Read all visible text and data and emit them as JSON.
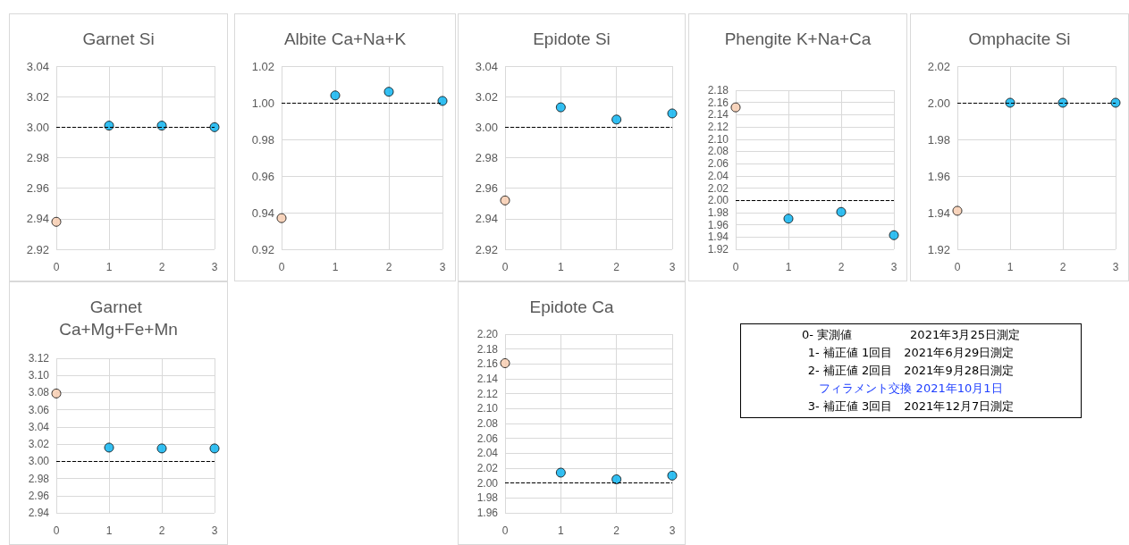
{
  "chart_data": [
    {
      "type": "scatter",
      "title": "Garnet Si",
      "x": [
        0,
        1,
        2,
        3
      ],
      "values": [
        2.938,
        3.001,
        3.001,
        3.0
      ],
      "colors": [
        "#f8cbad",
        "#00b0f0",
        "#00b0f0",
        "#00b0f0"
      ],
      "xlim": [
        0,
        3
      ],
      "xticks": [
        0,
        1,
        2,
        3
      ],
      "ylim": [
        2.92,
        3.04
      ],
      "yticks": [
        2.92,
        2.94,
        2.96,
        2.98,
        {
          "value": 3.0,
          "label": "3.00"
        },
        3.02,
        3.04
      ],
      "ref_lines": [
        {
          "axis": "y",
          "value": 3.0,
          "color": "#000000",
          "line_style": "dashed"
        }
      ],
      "grid": true,
      "marker": "circle"
    },
    {
      "type": "scatter",
      "title": "Albite Ca+Na+K",
      "x": [
        0,
        1,
        2,
        3
      ],
      "values": [
        0.937,
        1.004,
        1.006,
        1.001
      ],
      "colors": [
        "#f8cbad",
        "#00b0f0",
        "#00b0f0",
        "#00b0f0"
      ],
      "xlim": [
        0,
        3
      ],
      "xticks": [
        0,
        1,
        2,
        3
      ],
      "ylim": [
        0.92,
        1.02
      ],
      "yticks": [
        0.92,
        0.94,
        0.96,
        0.98,
        {
          "value": 1.0,
          "label": "1.00"
        },
        1.02
      ],
      "ref_lines": [
        {
          "axis": "y",
          "value": 1.0,
          "color": "#000000",
          "line_style": "dashed"
        }
      ],
      "grid": true,
      "marker": "circle"
    },
    {
      "type": "scatter",
      "title": "Epidote Si",
      "x": [
        0,
        1,
        2,
        3
      ],
      "values": [
        2.952,
        3.013,
        3.005,
        3.009
      ],
      "colors": [
        "#f8cbad",
        "#00b0f0",
        "#00b0f0",
        "#00b0f0"
      ],
      "xlim": [
        0,
        3
      ],
      "xticks": [
        0,
        1,
        2,
        3
      ],
      "ylim": [
        2.92,
        3.04
      ],
      "yticks": [
        2.92,
        2.94,
        2.96,
        2.98,
        {
          "value": 3.0,
          "label": "3.00"
        },
        3.02,
        3.04
      ],
      "ref_lines": [
        {
          "axis": "y",
          "value": 3.0,
          "color": "#000000",
          "line_style": "dashed"
        }
      ],
      "grid": true,
      "marker": "circle"
    },
    {
      "type": "scatter",
      "title": "Phengite K+Na+Ca",
      "x": [
        0,
        1,
        2,
        3
      ],
      "values": [
        2.152,
        1.97,
        1.981,
        1.943
      ],
      "colors": [
        "#f8cbad",
        "#00b0f0",
        "#00b0f0",
        "#00b0f0"
      ],
      "xlim": [
        0,
        3
      ],
      "xticks": [
        0,
        1,
        2,
        3
      ],
      "ylim": [
        1.92,
        2.18
      ],
      "yticks": [
        1.92,
        1.94,
        1.96,
        1.98,
        {
          "value": 2.0,
          "label": "2.00"
        },
        2.02,
        2.04,
        2.06,
        2.08,
        {
          "value": 2.1,
          "label": "2.10"
        },
        2.12,
        2.14,
        2.16,
        2.18
      ],
      "ref_lines": [
        {
          "axis": "y",
          "value": 2.0,
          "color": "#000000",
          "line_style": "dashed"
        }
      ],
      "grid": true,
      "marker": "circle"
    },
    {
      "type": "scatter",
      "title": "Omphacite Si",
      "x": [
        0,
        1,
        2,
        3
      ],
      "values": [
        1.941,
        2.0,
        2.0,
        2.0
      ],
      "colors": [
        "#f8cbad",
        "#00b0f0",
        "#00b0f0",
        "#00b0f0"
      ],
      "xlim": [
        0,
        3
      ],
      "xticks": [
        0,
        1,
        2,
        3
      ],
      "ylim": [
        1.92,
        2.02
      ],
      "yticks": [
        1.92,
        1.94,
        1.96,
        1.98,
        {
          "value": 2.0,
          "label": "2.00"
        },
        2.02
      ],
      "ref_lines": [
        {
          "axis": "y",
          "value": 2.0,
          "color": "#000000",
          "line_style": "dashed"
        }
      ],
      "grid": true,
      "marker": "circle"
    },
    {
      "type": "scatter",
      "title": "Garnet Ca+Mg+Fe+Mn",
      "x": [
        0,
        1,
        2,
        3
      ],
      "values": [
        3.079,
        3.016,
        3.015,
        3.015
      ],
      "colors": [
        "#f8cbad",
        "#00b0f0",
        "#00b0f0",
        "#00b0f0"
      ],
      "xlim": [
        0,
        3
      ],
      "xticks": [
        0,
        1,
        2,
        3
      ],
      "ylim": [
        2.94,
        3.12
      ],
      "yticks": [
        2.94,
        2.96,
        2.98,
        {
          "value": 3.0,
          "label": "3.00"
        },
        3.02,
        3.04,
        3.06,
        3.08,
        {
          "value": 3.1,
          "label": "3.10"
        },
        3.12
      ],
      "ref_lines": [
        {
          "axis": "y",
          "value": 3.0,
          "color": "#000000",
          "line_style": "dashed"
        }
      ],
      "grid": true,
      "marker": "circle"
    },
    {
      "type": "scatter",
      "title": "Epidote Ca",
      "x": [
        0,
        1,
        2,
        3
      ],
      "values": [
        2.161,
        2.014,
        2.005,
        2.01
      ],
      "colors": [
        "#f8cbad",
        "#00b0f0",
        "#00b0f0",
        "#00b0f0"
      ],
      "xlim": [
        0,
        3
      ],
      "xticks": [
        0,
        1,
        2,
        3
      ],
      "ylim": [
        1.96,
        2.2
      ],
      "yticks": [
        1.96,
        1.98,
        {
          "value": 2.0,
          "label": "2.00"
        },
        2.02,
        2.04,
        2.06,
        2.08,
        {
          "value": 2.1,
          "label": "2.10"
        },
        2.12,
        2.14,
        2.16,
        2.18,
        {
          "value": 2.2,
          "label": "2.20"
        }
      ],
      "ref_lines": [
        {
          "axis": "y",
          "value": 2.0,
          "color": "#000000",
          "line_style": "dashed"
        }
      ],
      "grid": true,
      "marker": "circle"
    },
    {
      "type": "other",
      "annotations": [
        "0- 実測値　　　　　2021年3月25日測定",
        "1- 補正値 1回目　2021年6月29日測定",
        "2- 補正値 2回目　2021年9月28日測定",
        "フィラメント交換 2021年10月1日",
        "3- 補正値 3回目　2021年12月7日測定"
      ]
    }
  ]
}
